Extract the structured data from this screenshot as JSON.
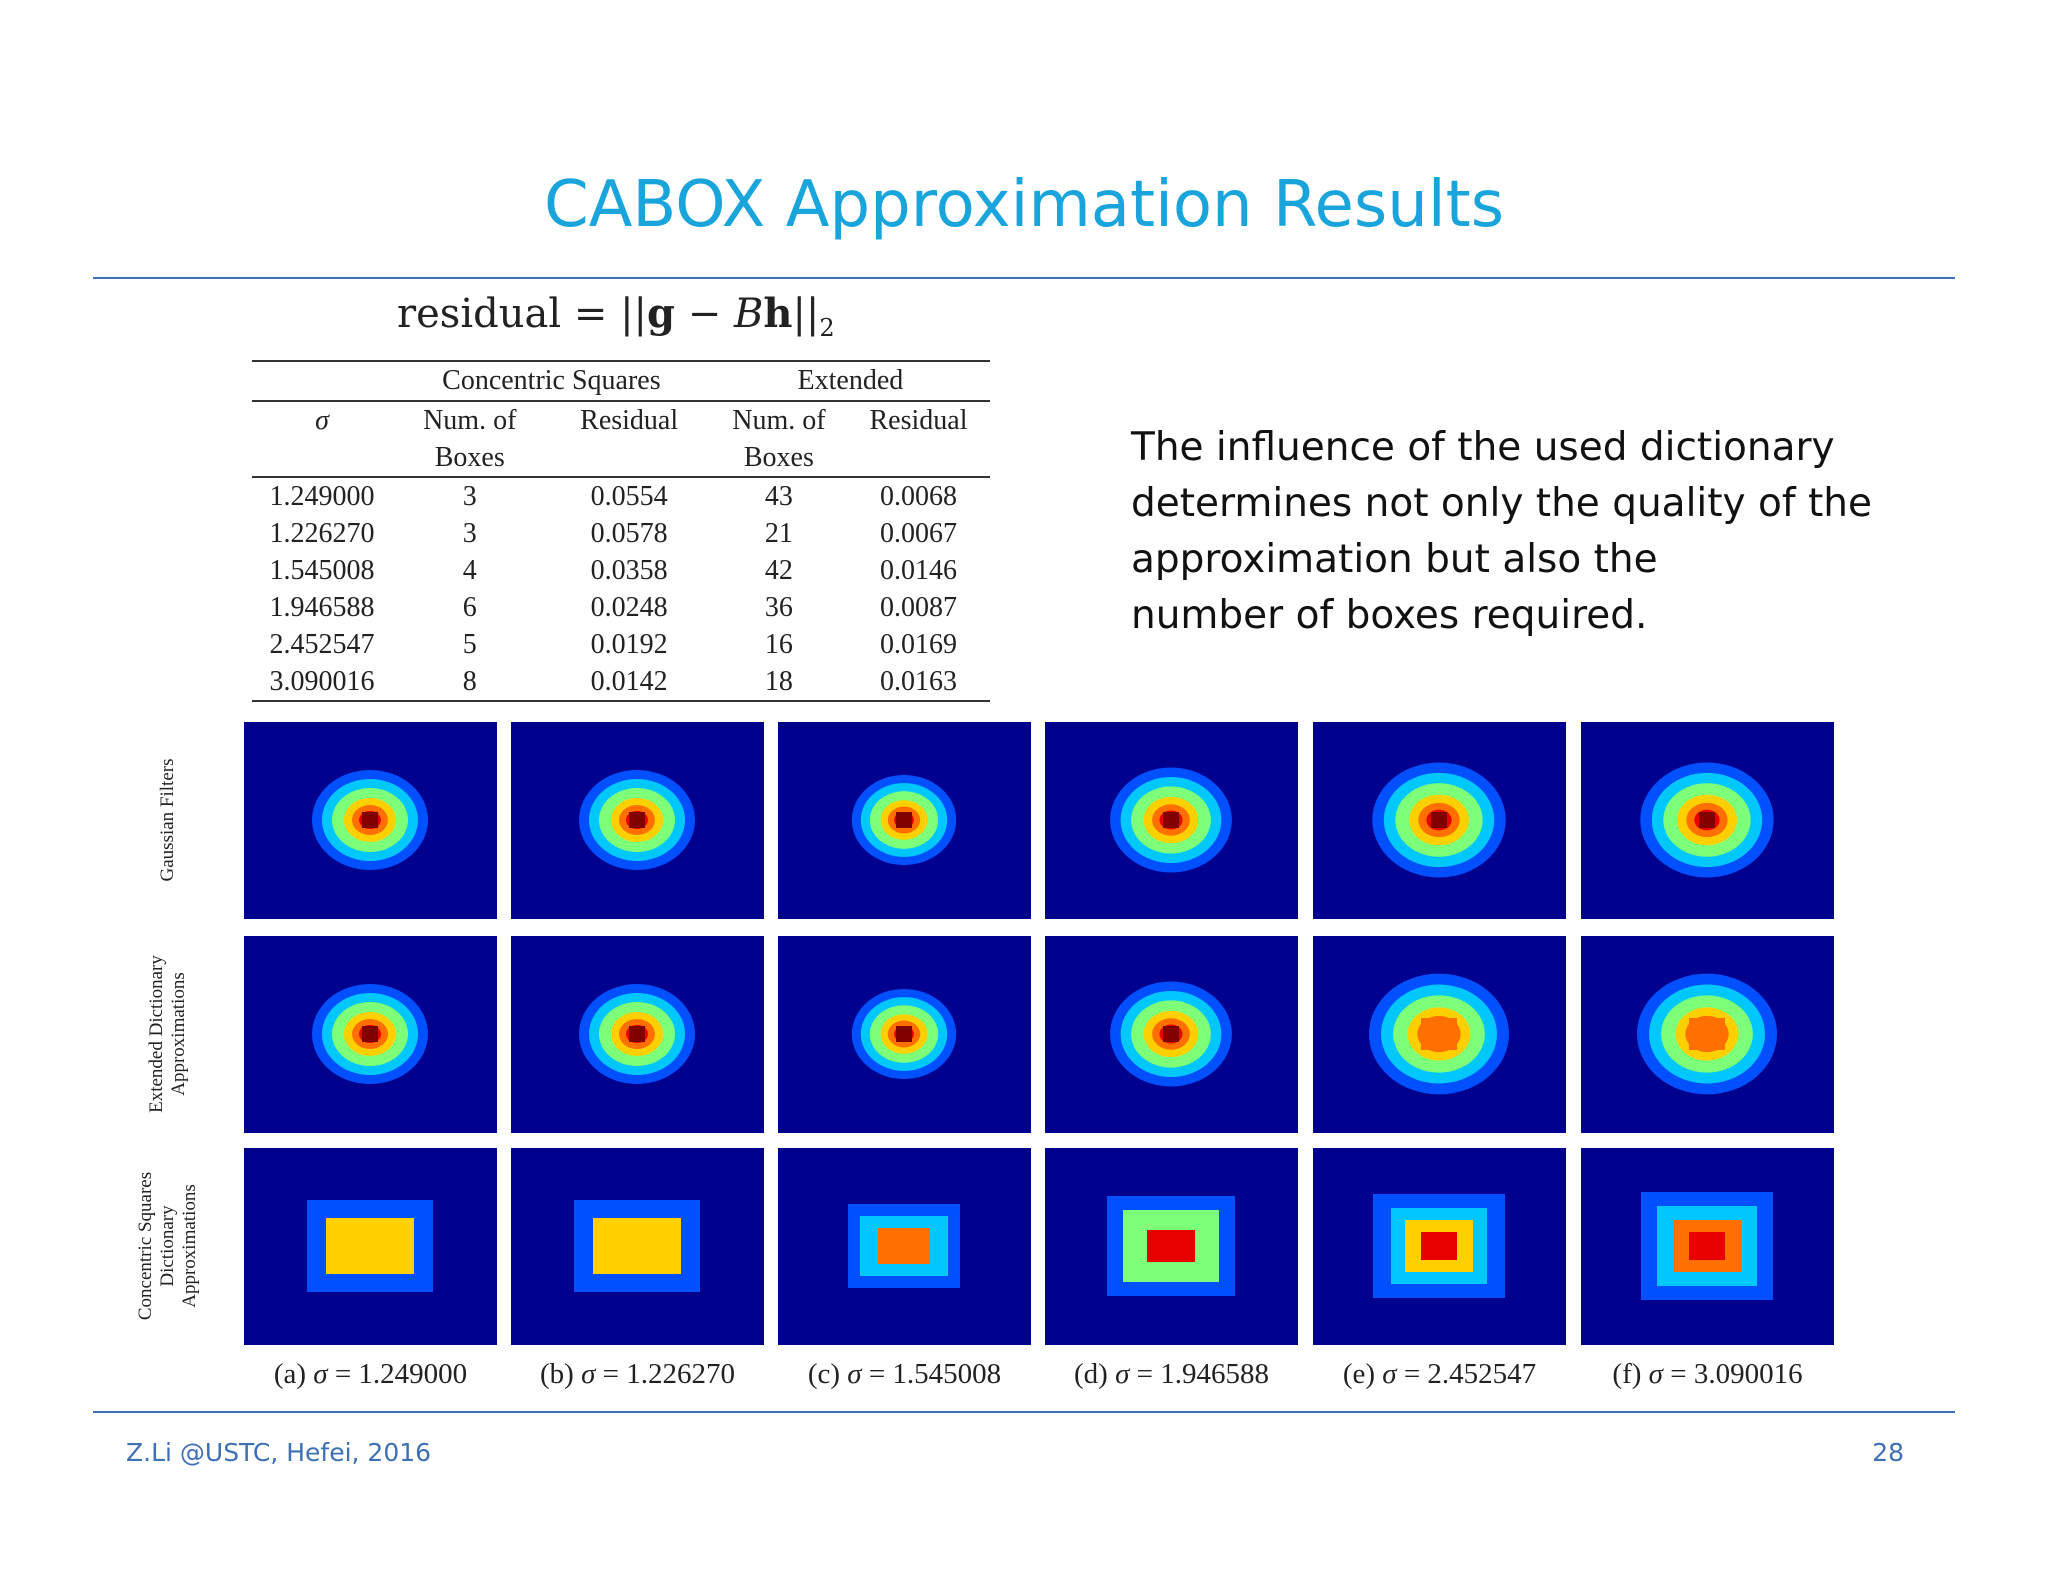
{
  "slide": {
    "title": "CABOX Approximation Results",
    "footer_left": "Z.Li @USTC, Hefei, 2016",
    "page_number": "28"
  },
  "formula": {
    "lhs": "residual",
    "eq": " = ||",
    "g": "g",
    "minus": " − ",
    "B": "B",
    "h": "h",
    "close": "||",
    "sub": "2"
  },
  "table": {
    "group_headers": [
      "Concentric Squares",
      "Extended"
    ],
    "sigma_header": "σ",
    "col_headers_line1": [
      "Num. of",
      "Residual",
      "Num. of",
      "Residual"
    ],
    "col_headers_line2": [
      "Boxes",
      "",
      "Boxes",
      ""
    ],
    "rows": [
      [
        "1.249000",
        "3",
        "0.0554",
        "43",
        "0.0068"
      ],
      [
        "1.226270",
        "3",
        "0.0578",
        "21",
        "0.0067"
      ],
      [
        "1.545008",
        "4",
        "0.0358",
        "42",
        "0.0146"
      ],
      [
        "1.946588",
        "6",
        "0.0248",
        "36",
        "0.0087"
      ],
      [
        "2.452547",
        "5",
        "0.0192",
        "16",
        "0.0169"
      ],
      [
        "3.090016",
        "8",
        "0.0142",
        "18",
        "0.0163"
      ]
    ]
  },
  "description_lines": [
    "The influence of the used dictionary",
    "determines not only the quality of  the",
    "approximation but also the",
    "number of boxes required."
  ],
  "figure": {
    "row_labels": [
      [
        "Gaussian Filters"
      ],
      [
        "Extended Dictionary",
        "Approximations"
      ],
      [
        "Concentric Squares",
        "Dictionary",
        "Approximations"
      ]
    ],
    "captions": [
      {
        "prefix": "(a) ",
        "sigma": "σ",
        "value": " = 1.249000"
      },
      {
        "prefix": "(b) ",
        "sigma": "σ",
        "value": " = 1.226270"
      },
      {
        "prefix": "(c) ",
        "sigma": "σ",
        "value": " = 1.545008"
      },
      {
        "prefix": "(d) ",
        "sigma": "σ",
        "value": " = 1.946588"
      },
      {
        "prefix": "(e) ",
        "sigma": "σ",
        "value": " = 2.452547"
      },
      {
        "prefix": "(f) ",
        "sigma": "σ",
        "value": " = 3.090016"
      }
    ],
    "background_color": "#00008f",
    "colormap": [
      "#00008f",
      "#0050ff",
      "#00c8ff",
      "#7dff7a",
      "#ffd000",
      "#ff7000",
      "#e80000",
      "#800000"
    ]
  }
}
